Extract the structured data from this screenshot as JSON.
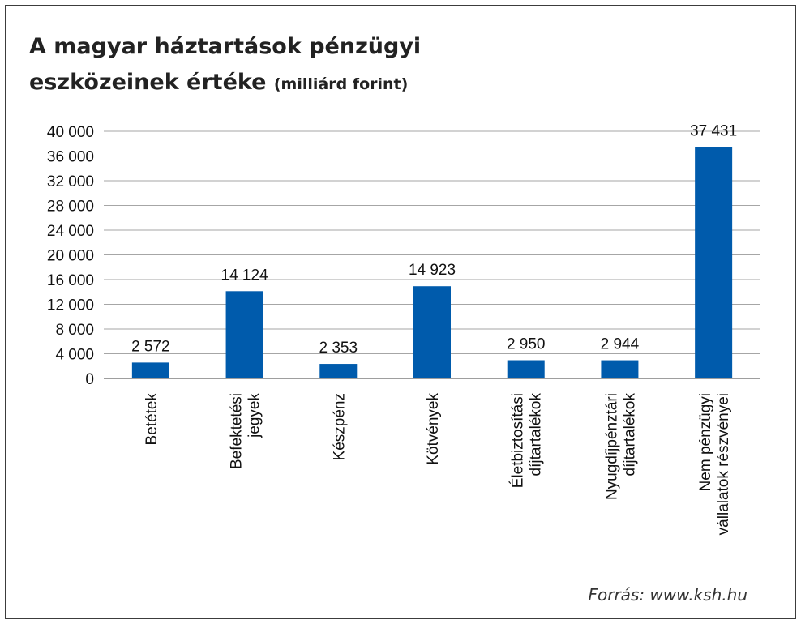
{
  "chart_data": {
    "type": "bar",
    "title": "A magyar háztartások pénzügyi eszközeinek értéke",
    "title_line1": "A magyar háztartások pénzügyi",
    "title_line2": "eszközeinek értéke",
    "unit": "(milliárd forint)",
    "categories": [
      [
        "Betétek"
      ],
      [
        "Befektetési",
        "jegyek"
      ],
      [
        "Készpénz"
      ],
      [
        "Kötvények"
      ],
      [
        "Életbiztosítási",
        "díjtartalékok"
      ],
      [
        "Nyugdíjpénztári",
        "díjtartalékok"
      ],
      [
        "Nem pénzügyi",
        "vállalatok részvényei"
      ]
    ],
    "values": [
      2572,
      14124,
      2353,
      14923,
      2950,
      2944,
      37431
    ],
    "value_labels": [
      "2 572",
      "14 124",
      "2 353",
      "14 923",
      "2 950",
      "2 944",
      "37 431"
    ],
    "yticks": [
      0,
      4000,
      8000,
      12000,
      16000,
      20000,
      24000,
      28000,
      32000,
      36000,
      40000
    ],
    "ytick_labels": [
      "0",
      "4 000",
      "8 000",
      "12 000",
      "16 000",
      "20 000",
      "24 000",
      "28 000",
      "32 000",
      "36 000",
      "40 000"
    ],
    "ylim": [
      0,
      40000
    ],
    "grid": true,
    "bar_color": "#005bac",
    "source": "Forrás: www.ksh.hu"
  }
}
